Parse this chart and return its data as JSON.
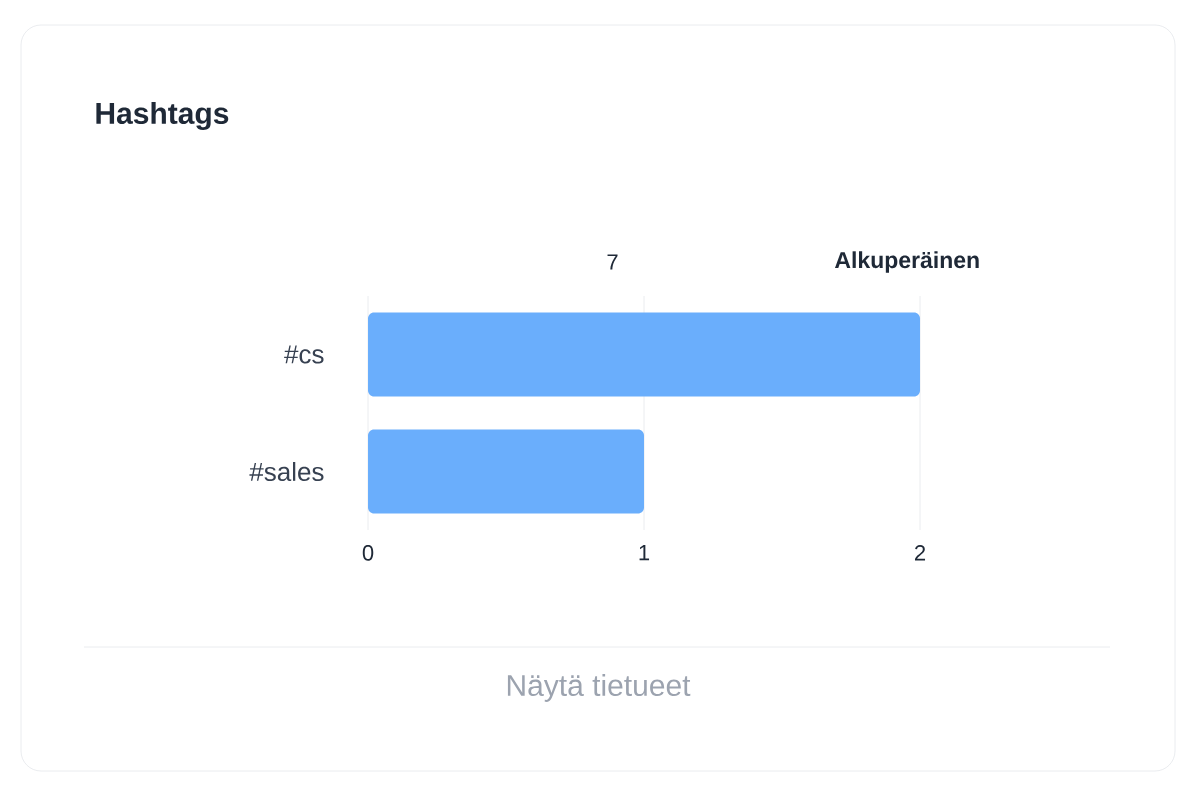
{
  "chart_data": {
    "type": "bar",
    "orientation": "horizontal",
    "title": "Hashtags",
    "categories": [
      "#cs",
      "#sales"
    ],
    "values": [
      2,
      1
    ],
    "color": "#6aaefc",
    "xlim": [
      0,
      2
    ],
    "xticks": [
      0,
      1,
      2
    ],
    "grid": "x",
    "annotations": [
      "7",
      "**Alkuperäinen**",
      "Näytä tietueet"
    ]
  }
}
